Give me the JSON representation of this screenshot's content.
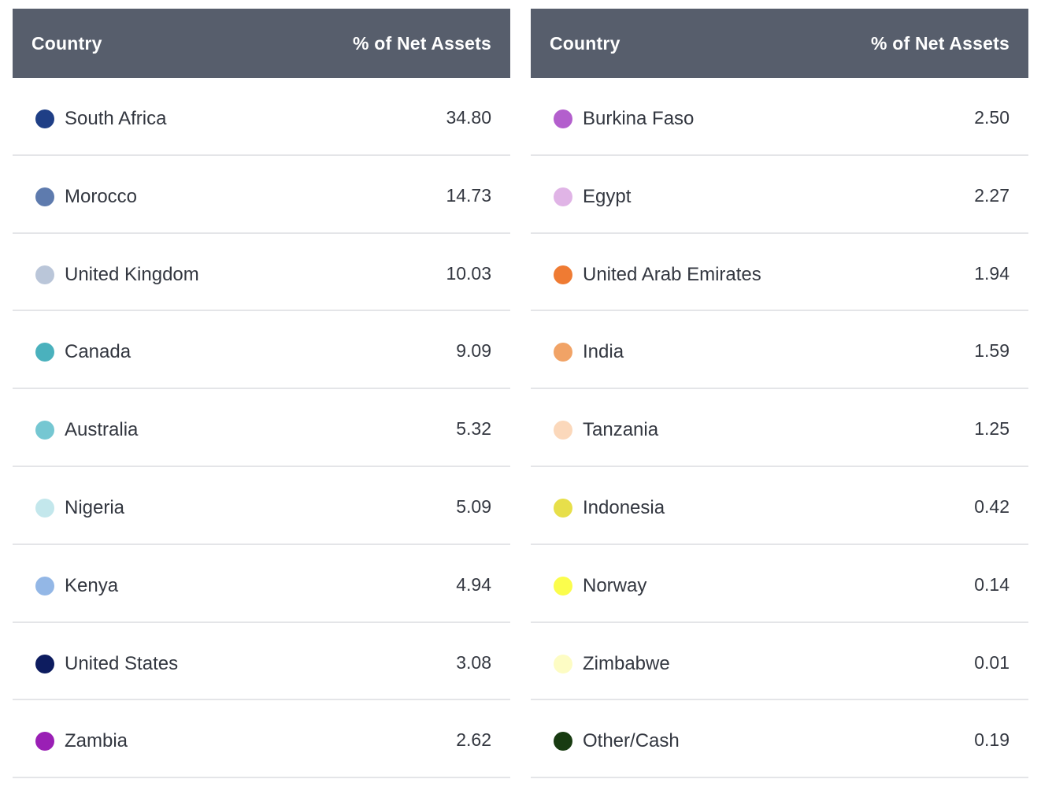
{
  "header": {
    "country_label": "Country",
    "assets_label": "% of Net Assets"
  },
  "left_table": [
    {
      "country": "South Africa",
      "value": "34.80",
      "color": "#1f3f86"
    },
    {
      "country": "Morocco",
      "value": "14.73",
      "color": "#5e7bae"
    },
    {
      "country": "United Kingdom",
      "value": "10.03",
      "color": "#bac6d9"
    },
    {
      "country": "Canada",
      "value": "9.09",
      "color": "#4ab1bd"
    },
    {
      "country": "Australia",
      "value": "5.32",
      "color": "#75c7d2"
    },
    {
      "country": "Nigeria",
      "value": "5.09",
      "color": "#c3e7ec"
    },
    {
      "country": "Kenya",
      "value": "4.94",
      "color": "#93b7e6"
    },
    {
      "country": "United States",
      "value": "3.08",
      "color": "#0d1c5f"
    },
    {
      "country": "Zambia",
      "value": "2.62",
      "color": "#9a1fb5"
    }
  ],
  "right_table": [
    {
      "country": "Burkina Faso",
      "value": "2.50",
      "color": "#b35fcd"
    },
    {
      "country": "Egypt",
      "value": "2.27",
      "color": "#e0b4e6"
    },
    {
      "country": "United Arab Emirates",
      "value": "1.94",
      "color": "#ef7b33"
    },
    {
      "country": "India",
      "value": "1.59",
      "color": "#f1a366"
    },
    {
      "country": "Tanzania",
      "value": "1.25",
      "color": "#fbd8bb"
    },
    {
      "country": "Indonesia",
      "value": "0.42",
      "color": "#e7df4a"
    },
    {
      "country": "Norway",
      "value": "0.14",
      "color": "#fbfd4c"
    },
    {
      "country": "Zimbabwe",
      "value": "0.01",
      "color": "#fdfcc4"
    },
    {
      "country": "Other/Cash",
      "value": "0.19",
      "color": "#183b11"
    }
  ]
}
